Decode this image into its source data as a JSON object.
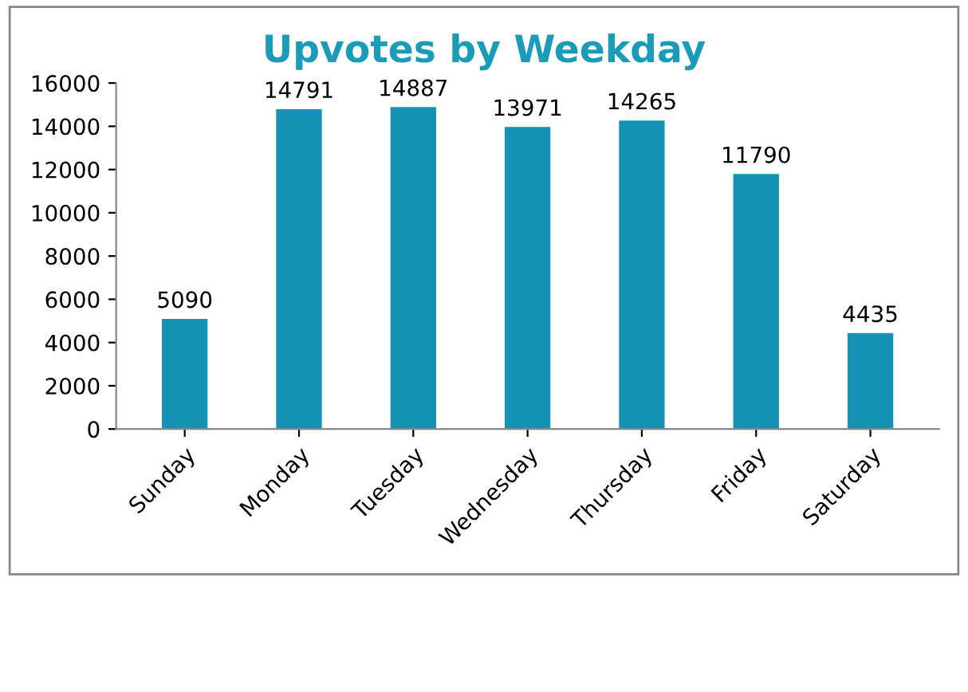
{
  "chart_data": {
    "type": "bar",
    "title": "Upvotes by Weekday",
    "categories": [
      "Sunday",
      "Monday",
      "Tuesday",
      "Wednesday",
      "Thursday",
      "Friday",
      "Saturday"
    ],
    "values": [
      5090,
      14791,
      14887,
      13971,
      14265,
      11790,
      4435
    ],
    "color": "#1693b4",
    "ylim": [
      0,
      16000
    ],
    "yticks": [
      0,
      2000,
      4000,
      6000,
      8000,
      10000,
      12000,
      14000,
      16000
    ],
    "grid": false,
    "data_labels": true
  }
}
